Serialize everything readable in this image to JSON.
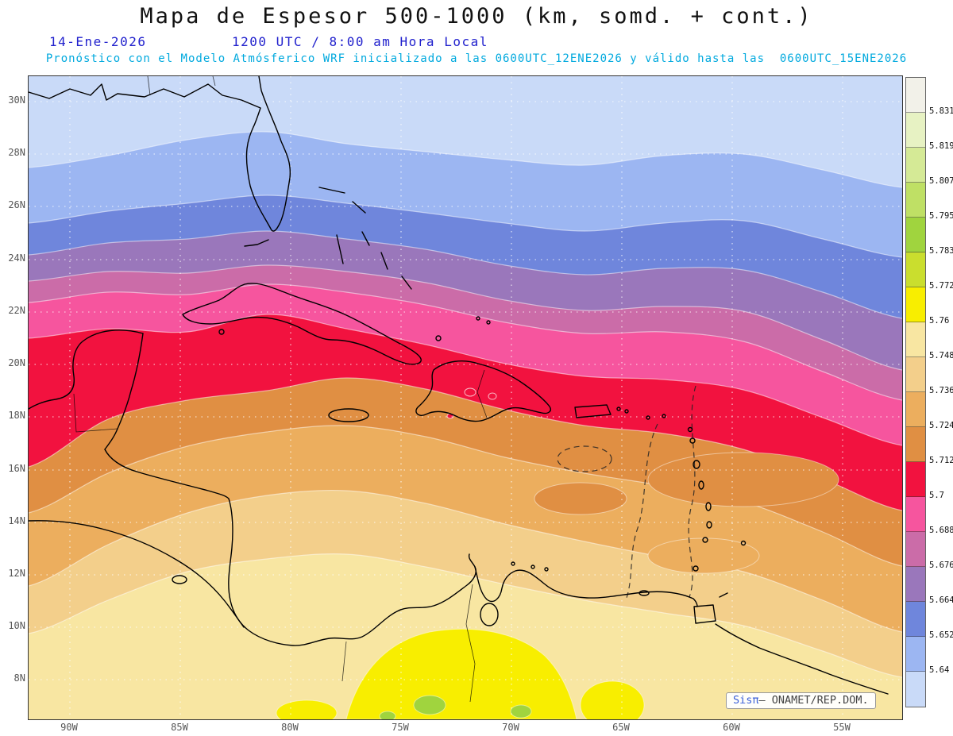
{
  "header": {
    "title": "Mapa de Espesor 500-1000 (km, somd. + cont.)",
    "date": "14-Ene-2026",
    "time_line": "1200 UTC / 8:00 am Hora Local",
    "forecast_line": "Pronóstico con el Modelo Atmósferico WRF inicializado a las 0600UTC_12ENE2026 y válido hasta las  0600UTC_15ENE2026"
  },
  "map": {
    "lat_labels": [
      "30N",
      "28N",
      "26N",
      "24N",
      "22N",
      "20N",
      "18N",
      "16N",
      "14N",
      "12N",
      "10N",
      "8N"
    ],
    "lon_labels": [
      "90W",
      "85W",
      "80W",
      "75W",
      "70W",
      "65W",
      "60W",
      "55W"
    ],
    "watermark": {
      "brand": "Sisπ",
      "text": "– ONAMET/REP.DOM."
    }
  },
  "colorbar": {
    "values": [
      "5.831",
      "5.819",
      "5.807",
      "5.795",
      "5.783",
      "5.772",
      "5.76",
      "5.748",
      "5.736",
      "5.724",
      "5.712",
      "5.7",
      "5.688",
      "5.676",
      "5.664",
      "5.652",
      "5.64"
    ],
    "colors": [
      "#f2f1e9",
      "#e7f2c3",
      "#d5ea96",
      "#bfe065",
      "#a0d43e",
      "#cade2e",
      "#f8ee00",
      "#f8e6a2",
      "#f3cf8b",
      "#ecae5e",
      "#e08f43",
      "#f2123f",
      "#f6559e",
      "#cb6ca8",
      "#9a77bb",
      "#6f86dc",
      "#9cb6f2",
      "#c9daf8"
    ]
  },
  "chart_data": {
    "type": "heatmap",
    "title": "Mapa de Espesor 500-1000 (km, somd. + cont.)",
    "x_ticks": [
      "90W",
      "85W",
      "80W",
      "75W",
      "70W",
      "65W",
      "60W",
      "55W"
    ],
    "y_ticks": [
      "30N",
      "28N",
      "26N",
      "24N",
      "22N",
      "20N",
      "18N",
      "16N",
      "14N",
      "12N",
      "10N",
      "8N"
    ],
    "scale_values": [
      5.831,
      5.819,
      5.807,
      5.795,
      5.783,
      5.772,
      5.76,
      5.748,
      5.736,
      5.724,
      5.712,
      5.7,
      5.688,
      5.676,
      5.664,
      5.652,
      5.64
    ],
    "legend_position": "right",
    "grid": true,
    "notes": "Thickness (km) decreases from ~5.77 in the south (yellow/tan over South America) through orange, red (~5.70-5.712 over the central Caribbean/Cuba), pink, purple to blue (<5.64) over the Gulf of Mexico and subtropical Atlantic."
  }
}
